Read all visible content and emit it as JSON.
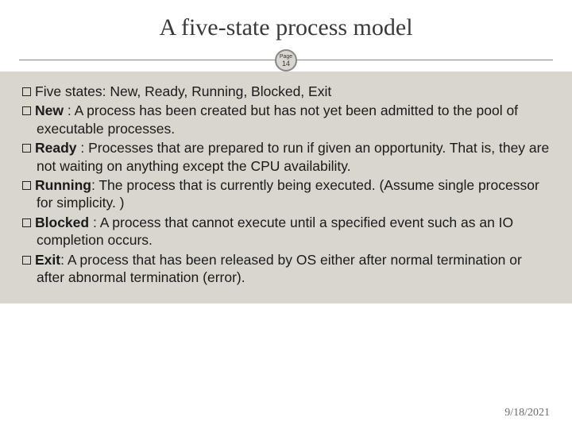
{
  "slide": {
    "title": "A five-state process model",
    "page_label": "Page",
    "page_number": "14",
    "date": "9/18/2021",
    "background_color": "#d8d6cf",
    "title_color": "#3a3a3a",
    "text_color": "#1a1a1a",
    "footer_color": "#6b6b6b",
    "title_fontsize": 30,
    "body_fontsize": 17.5
  },
  "bullets": [
    {
      "lead": "Five states",
      "lead_bold": false,
      "colon_before_lead": false,
      "rest": ": New,  Ready,  Running,  Blocked,  Exit"
    },
    {
      "lead": "New",
      "lead_bold": true,
      "rest": " :  A process has been created but has not yet been admitted to the pool of executable processes."
    },
    {
      "lead": "Ready",
      "lead_bold": true,
      "rest": " : Processes that are prepared to run if given an opportunity. That is, they are not waiting on anything except the CPU availability."
    },
    {
      "lead": "Running",
      "lead_bold": true,
      "rest": ": The process that is currently being executed. (Assume single processor for simplicity. )"
    },
    {
      "lead": "Blocked",
      "lead_bold": true,
      "rest": " : A process that cannot execute until a specified event such as an IO completion occurs."
    },
    {
      "lead": "Exit",
      "lead_bold": true,
      "rest": ": A process that has been released by OS either after normal termination or after abnormal termination (error)."
    }
  ]
}
